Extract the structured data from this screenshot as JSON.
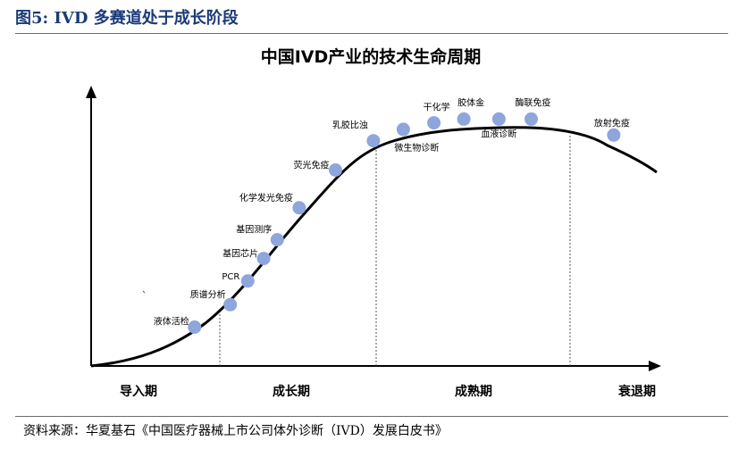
{
  "header": {
    "figure_title": "图5:  IVD 多赛道处于成长阶段"
  },
  "footer": {
    "source": "资料来源：华夏基石《中国医疗器械上市公司体外诊断（IVD）发展白皮书》"
  },
  "colors": {
    "header": "#1b3a7a",
    "point": "#8ea6dc",
    "curve": "#000000",
    "divider": "#555555"
  },
  "chart_data": {
    "type": "line",
    "title": "中国IVD产业的技术生命周期",
    "stages": [
      "导入期",
      "成长期",
      "成熟期",
      "衰退期"
    ],
    "points": [
      {
        "label": "液体活检",
        "x": 0.183,
        "y": 0.143
      },
      {
        "label": "质谱分析",
        "x": 0.246,
        "y": 0.226
      },
      {
        "label": "PCR",
        "x": 0.277,
        "y": 0.313
      },
      {
        "label": "基因芯片",
        "x": 0.305,
        "y": 0.396
      },
      {
        "label": "基因测序",
        "x": 0.329,
        "y": 0.465
      },
      {
        "label": "化学发光免疫",
        "x": 0.368,
        "y": 0.583
      },
      {
        "label": "荧光免疫",
        "x": 0.432,
        "y": 0.722
      },
      {
        "label": "乳胶比浊",
        "x": 0.499,
        "y": 0.83
      },
      {
        "label": "微生物诊断",
        "x": 0.552,
        "y": 0.872
      },
      {
        "label": "干化学",
        "x": 0.606,
        "y": 0.896
      },
      {
        "label": "胶体金",
        "x": 0.659,
        "y": 0.91
      },
      {
        "label": "血液诊断",
        "x": 0.721,
        "y": 0.91
      },
      {
        "label": "酶联免疫",
        "x": 0.778,
        "y": 0.91
      },
      {
        "label": "放射免疫",
        "x": 0.924,
        "y": 0.851
      }
    ]
  }
}
